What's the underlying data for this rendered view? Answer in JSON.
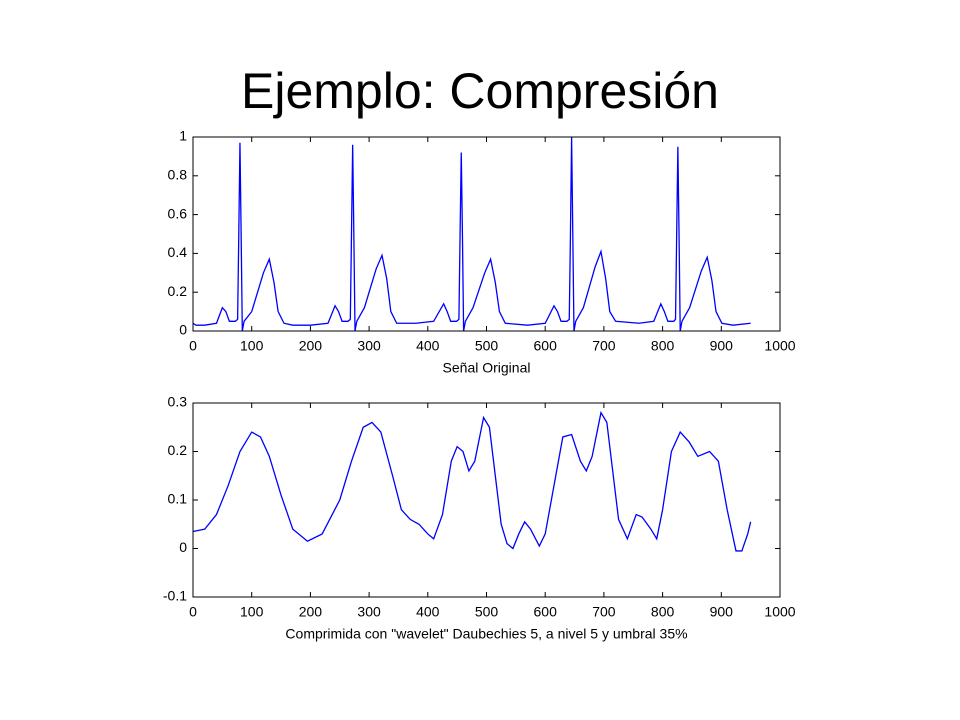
{
  "title": "Ejemplo: Compresión",
  "chart_data": [
    {
      "type": "line",
      "xlabel": "Señal Original",
      "color": "#0000ff",
      "xlim": [
        0,
        1000
      ],
      "xticks": [
        0,
        100,
        200,
        300,
        400,
        500,
        600,
        700,
        800,
        900,
        1000
      ],
      "ylim": [
        0,
        1
      ],
      "yticks": [
        0,
        0.2,
        0.4,
        0.6,
        0.8,
        1
      ],
      "x": [
        0,
        5,
        20,
        40,
        50,
        56,
        62,
        72,
        76,
        78,
        80,
        82,
        84,
        87,
        100,
        120,
        130,
        138,
        145,
        155,
        170,
        200,
        230,
        242,
        248,
        254,
        264,
        268,
        270,
        272,
        274,
        276,
        279,
        292,
        312,
        322,
        330,
        337,
        347,
        380,
        410,
        427,
        433,
        439,
        449,
        453,
        455,
        457,
        459,
        461,
        464,
        477,
        497,
        507,
        515,
        522,
        532,
        570,
        600,
        615,
        621,
        627,
        637,
        641,
        643,
        645,
        647,
        649,
        652,
        665,
        685,
        695,
        703,
        710,
        720,
        760,
        785,
        797,
        803,
        809,
        819,
        822,
        824,
        826,
        828,
        830,
        833,
        846,
        866,
        876,
        884,
        891,
        901,
        920,
        950
      ],
      "values": [
        0.04,
        0.03,
        0.03,
        0.04,
        0.12,
        0.1,
        0.05,
        0.05,
        0.06,
        0.5,
        0.97,
        0.5,
        0.0,
        0.05,
        0.1,
        0.3,
        0.37,
        0.25,
        0.1,
        0.04,
        0.03,
        0.03,
        0.04,
        0.13,
        0.1,
        0.05,
        0.05,
        0.06,
        0.5,
        0.96,
        0.5,
        0.0,
        0.05,
        0.12,
        0.32,
        0.39,
        0.27,
        0.1,
        0.04,
        0.04,
        0.05,
        0.14,
        0.1,
        0.05,
        0.05,
        0.06,
        0.5,
        0.92,
        0.5,
        0.0,
        0.05,
        0.12,
        0.3,
        0.37,
        0.25,
        0.1,
        0.04,
        0.03,
        0.04,
        0.13,
        0.1,
        0.05,
        0.05,
        0.06,
        0.5,
        1.0,
        0.5,
        0.0,
        0.05,
        0.12,
        0.33,
        0.41,
        0.27,
        0.1,
        0.05,
        0.04,
        0.05,
        0.14,
        0.1,
        0.05,
        0.05,
        0.06,
        0.5,
        0.95,
        0.5,
        0.0,
        0.05,
        0.12,
        0.31,
        0.38,
        0.26,
        0.1,
        0.04,
        0.03,
        0.04
      ]
    },
    {
      "type": "line",
      "xlabel": "Comprimida con \"wavelet\" Daubechies 5, a nivel 5 y umbral 35%",
      "color": "#0000ff",
      "xlim": [
        0,
        1000
      ],
      "xticks": [
        0,
        100,
        200,
        300,
        400,
        500,
        600,
        700,
        800,
        900,
        1000
      ],
      "ylim": [
        -0.1,
        0.3
      ],
      "yticks": [
        -0.1,
        0,
        0.1,
        0.2,
        0.3
      ],
      "x": [
        0,
        20,
        40,
        60,
        80,
        100,
        115,
        130,
        150,
        170,
        195,
        220,
        250,
        270,
        290,
        305,
        320,
        340,
        355,
        370,
        385,
        400,
        410,
        425,
        440,
        450,
        460,
        470,
        480,
        495,
        505,
        515,
        525,
        535,
        545,
        555,
        565,
        575,
        590,
        600,
        615,
        630,
        645,
        660,
        670,
        680,
        695,
        705,
        715,
        725,
        740,
        755,
        765,
        780,
        790,
        800,
        815,
        830,
        845,
        860,
        880,
        895,
        910,
        925,
        935,
        945,
        950
      ],
      "values": [
        0.035,
        0.04,
        0.07,
        0.13,
        0.2,
        0.24,
        0.23,
        0.19,
        0.11,
        0.04,
        0.015,
        0.03,
        0.1,
        0.18,
        0.25,
        0.26,
        0.24,
        0.15,
        0.08,
        0.06,
        0.05,
        0.03,
        0.02,
        0.07,
        0.18,
        0.21,
        0.2,
        0.16,
        0.18,
        0.27,
        0.25,
        0.15,
        0.05,
        0.01,
        0.0,
        0.03,
        0.055,
        0.04,
        0.005,
        0.03,
        0.13,
        0.23,
        0.235,
        0.18,
        0.16,
        0.19,
        0.28,
        0.26,
        0.16,
        0.06,
        0.02,
        0.07,
        0.065,
        0.04,
        0.02,
        0.08,
        0.2,
        0.24,
        0.22,
        0.19,
        0.2,
        0.18,
        0.08,
        -0.005,
        -0.005,
        0.03,
        0.055
      ]
    }
  ]
}
